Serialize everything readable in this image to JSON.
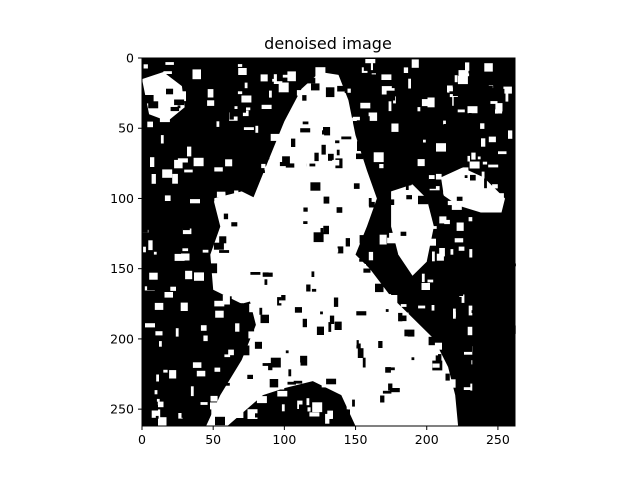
{
  "chart_data": {
    "type": "heatmap",
    "title": "denoised image",
    "xlabel": "",
    "ylabel": "",
    "xlim": [
      0,
      262
    ],
    "ylim": [
      262,
      0
    ],
    "x_ticks": [
      0,
      50,
      100,
      150,
      200,
      250
    ],
    "y_ticks": [
      0,
      50,
      100,
      150,
      200,
      250
    ],
    "x_tick_labels": [
      "0",
      "50",
      "100",
      "150",
      "200",
      "250"
    ],
    "y_tick_labels": [
      "0",
      "50",
      "100",
      "150",
      "200",
      "250"
    ],
    "colormap": "binary (black = 0, white = 1)",
    "grid": false,
    "legend": "none",
    "colors": {
      "on": "#ffffff",
      "off": "#000000",
      "frame": "#000000"
    }
  }
}
